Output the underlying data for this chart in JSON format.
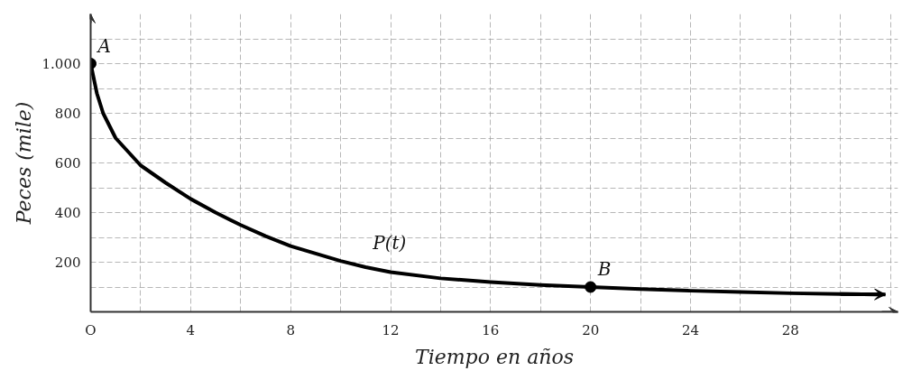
{
  "chart_data": {
    "type": "line",
    "xlabel": "Tiempo en años",
    "ylabel": "Peces (mile)",
    "xlim": [
      0,
      32.3
    ],
    "ylim": [
      0,
      1200
    ],
    "xticks": [
      {
        "value": 0,
        "label": "O"
      },
      {
        "value": 2,
        "label": null
      },
      4,
      {
        "value": 6,
        "label": null
      },
      8,
      {
        "value": 10,
        "label": null
      },
      12,
      {
        "value": 14,
        "label": null
      },
      16,
      {
        "value": 18,
        "label": null
      },
      20,
      {
        "value": 22,
        "label": null
      },
      24,
      {
        "value": 26,
        "label": null
      },
      28,
      {
        "value": 30,
        "label": null
      },
      {
        "value": 32,
        "label": null
      }
    ],
    "yticks": [
      {
        "value": 0,
        "label": null
      },
      {
        "value": 100,
        "label": null
      },
      200,
      {
        "value": 300,
        "label": null
      },
      400,
      {
        "value": 500,
        "label": null
      },
      600,
      {
        "value": 700,
        "label": null
      },
      800,
      {
        "value": 900,
        "label": null
      },
      {
        "value": 1000,
        "label": "1.000"
      },
      {
        "value": 1100,
        "label": null
      }
    ],
    "grid": true,
    "line_style": "solid",
    "series": [
      {
        "color": "#000000",
        "x": [
          0,
          0.25,
          0.5,
          1,
          2,
          3,
          4,
          5,
          6,
          7,
          8,
          9,
          10,
          11,
          12,
          14,
          16,
          18,
          20,
          22,
          24,
          26,
          28,
          30,
          31.8
        ],
        "values": [
          1000,
          880,
          800,
          700,
          590,
          520,
          455,
          400,
          350,
          305,
          265,
          235,
          205,
          180,
          160,
          135,
          120,
          108,
          100,
          92,
          85,
          80,
          75,
          72,
          70
        ]
      },
      {
        "type": "scatter",
        "color": "#000000",
        "marker": "circle",
        "x": [
          0,
          20
        ],
        "values": [
          1000,
          100
        ]
      }
    ],
    "annotations": [
      {
        "text": "A",
        "x": 0,
        "y": 1000
      },
      {
        "text": "B",
        "x": 20,
        "y": 100
      },
      {
        "text": "P(t)",
        "x": 11,
        "y": 205
      }
    ]
  }
}
